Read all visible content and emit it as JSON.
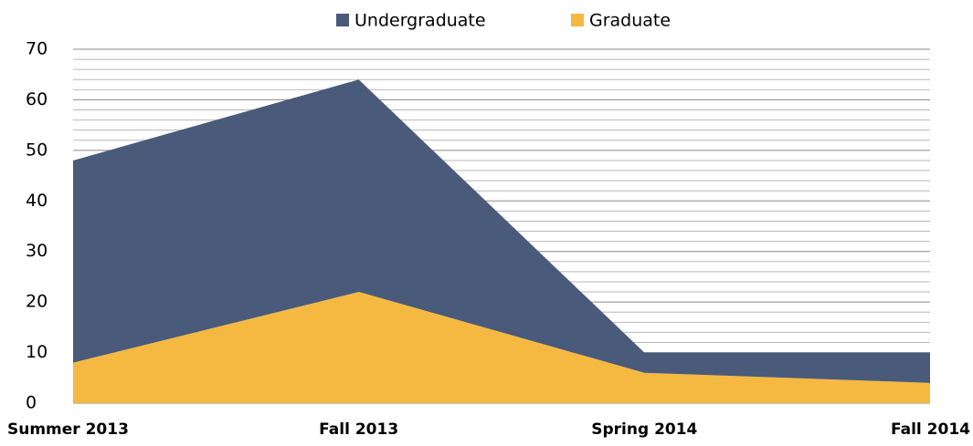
{
  "chart_data": {
    "type": "stacked_area",
    "categories": [
      "Summer 2013",
      "Fall 2013",
      "Spring 2014",
      "Fall 2014"
    ],
    "series": [
      {
        "name": "Undergraduate",
        "color": "#4a5a7a",
        "values": [
          40,
          42,
          4,
          6
        ]
      },
      {
        "name": "Graduate",
        "color": "#f5b942",
        "values": [
          8,
          22,
          6,
          4
        ]
      }
    ],
    "ylim": [
      0,
      70
    ],
    "yticks": [
      0,
      10,
      20,
      30,
      40,
      50,
      60,
      70
    ],
    "minor_yticks": [
      2,
      4,
      6,
      8,
      12,
      14,
      16,
      18,
      22,
      24,
      26,
      28,
      32,
      34,
      36,
      38,
      42,
      44,
      46,
      48,
      52,
      54,
      56,
      58,
      62,
      64,
      66,
      68
    ],
    "grid": true,
    "legend": "top"
  }
}
